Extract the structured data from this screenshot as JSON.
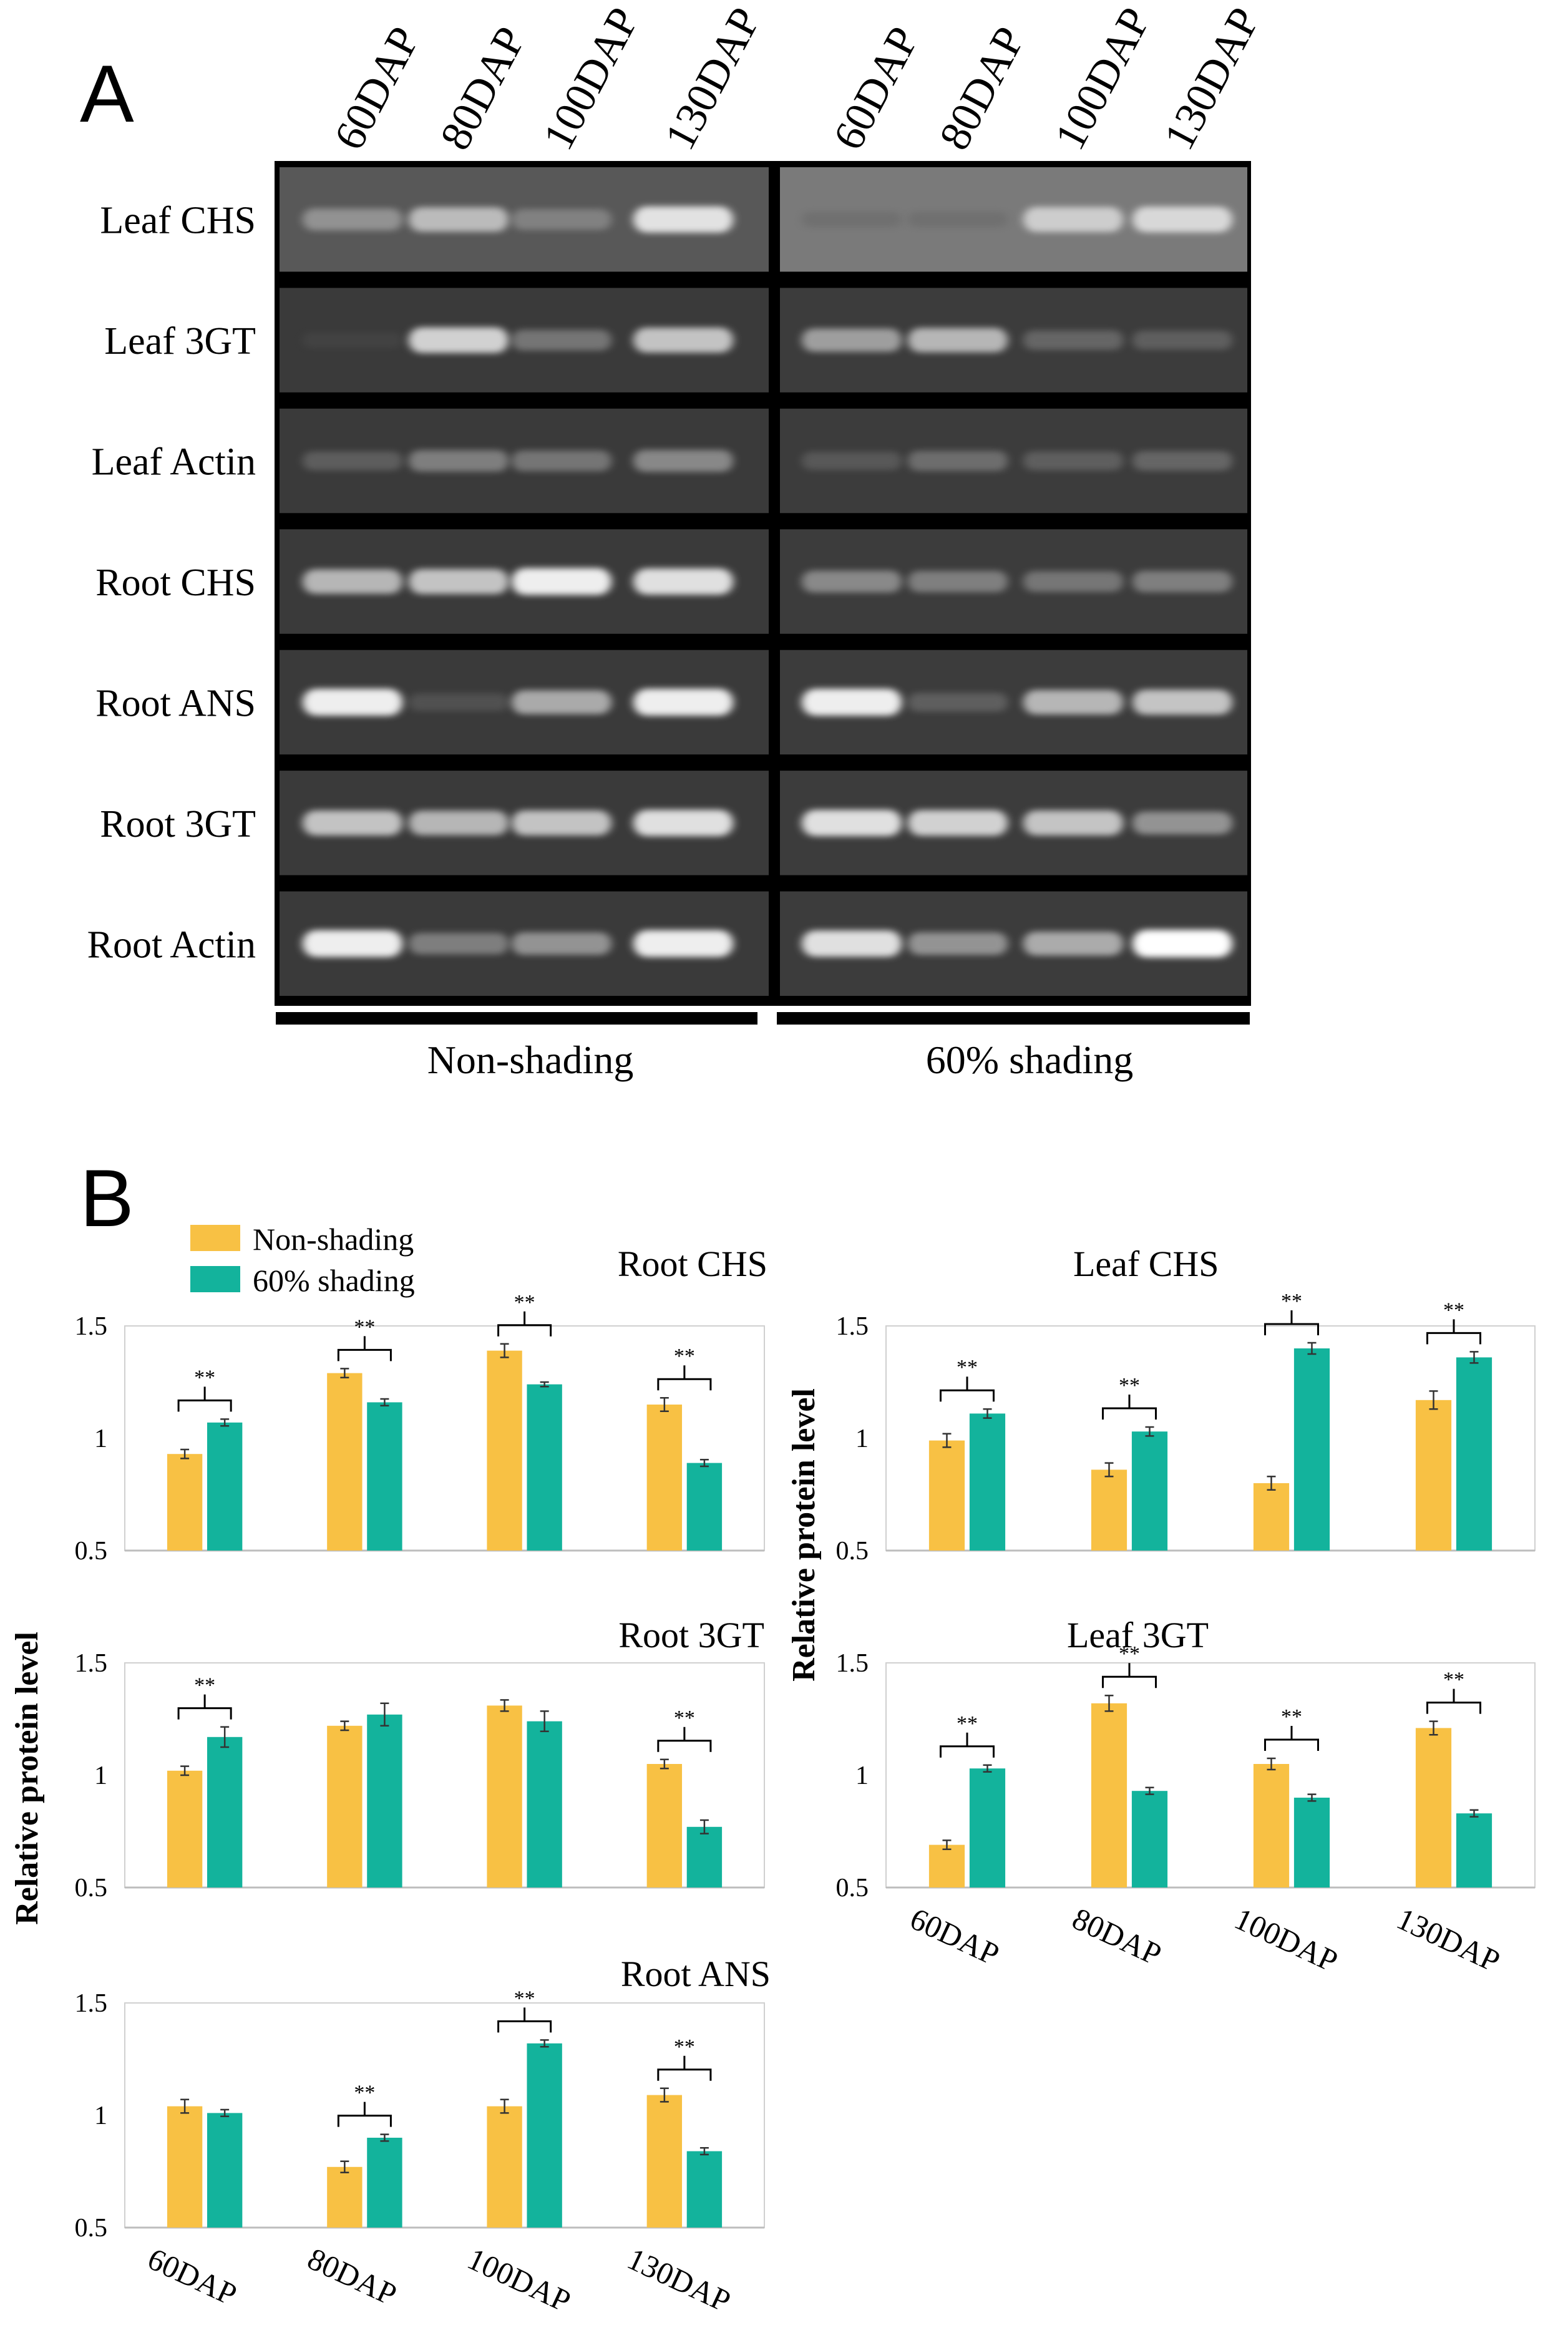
{
  "panel_a": {
    "letter": "A",
    "lanes": [
      "60DAP",
      "80DAP",
      "100DAP",
      "130DAP",
      "60DAP",
      "80DAP",
      "100DAP",
      "130DAP"
    ],
    "rows": [
      {
        "label": "Leaf CHS",
        "intensity": [
          0.55,
          0.75,
          0.45,
          0.9,
          0.05,
          0.05,
          0.8,
          0.85
        ]
      },
      {
        "label": "Leaf 3GT",
        "intensity": [
          0.05,
          0.85,
          0.45,
          0.8,
          0.65,
          0.75,
          0.35,
          0.3
        ]
      },
      {
        "label": "Leaf Actin",
        "intensity": [
          0.3,
          0.5,
          0.45,
          0.55,
          0.25,
          0.4,
          0.3,
          0.35
        ]
      },
      {
        "label": "Root CHS",
        "intensity": [
          0.75,
          0.8,
          0.95,
          0.9,
          0.55,
          0.5,
          0.45,
          0.5
        ]
      },
      {
        "label": "Root ANS",
        "intensity": [
          0.95,
          0.2,
          0.7,
          0.95,
          0.95,
          0.3,
          0.75,
          0.8
        ]
      },
      {
        "label": "Root 3GT",
        "intensity": [
          0.8,
          0.75,
          0.8,
          0.9,
          0.9,
          0.85,
          0.8,
          0.6
        ]
      },
      {
        "label": "Root Actin",
        "intensity": [
          0.95,
          0.5,
          0.6,
          0.95,
          0.9,
          0.6,
          0.7,
          1.0
        ]
      }
    ],
    "groups": [
      "Non-shading",
      "60% shading"
    ]
  },
  "panel_b": {
    "letter": "B",
    "legend": [
      {
        "label": "Non-shading",
        "color": "#F8C144"
      },
      {
        "label": "60% shading",
        "color": "#13B39C"
      }
    ],
    "ylabel": "Relative  protein  level",
    "significance_mark": "**"
  },
  "chart_data": [
    {
      "type": "bar",
      "title": "Root   CHS",
      "categories": [
        "60DAP",
        "80DAP",
        "100DAP",
        "130DAP"
      ],
      "series": [
        {
          "name": "Non-shading",
          "values": [
            0.93,
            1.29,
            1.39,
            1.15
          ],
          "errors": [
            0.02,
            0.02,
            0.03,
            0.03
          ]
        },
        {
          "name": "60% shading",
          "values": [
            1.07,
            1.16,
            1.24,
            0.89
          ],
          "errors": [
            0.015,
            0.015,
            0.01,
            0.015
          ]
        }
      ],
      "significant": [
        true,
        true,
        true,
        true
      ],
      "ylim": [
        0.5,
        1.5
      ],
      "yticks": [
        "0.5",
        "1",
        "1.5"
      ],
      "show_xlabels": false
    },
    {
      "type": "bar",
      "title": "Leaf   CHS",
      "categories": [
        "60DAP",
        "80DAP",
        "100DAP",
        "130DAP"
      ],
      "series": [
        {
          "name": "Non-shading",
          "values": [
            0.99,
            0.86,
            0.8,
            1.17
          ],
          "errors": [
            0.03,
            0.03,
            0.03,
            0.04
          ]
        },
        {
          "name": "60% shading",
          "values": [
            1.11,
            1.03,
            1.4,
            1.36
          ],
          "errors": [
            0.02,
            0.02,
            0.025,
            0.025
          ]
        }
      ],
      "significant": [
        true,
        true,
        true,
        true
      ],
      "ylim": [
        0.5,
        1.5
      ],
      "yticks": [
        "0.5",
        "1",
        "1.5"
      ],
      "show_xlabels": false
    },
    {
      "type": "bar",
      "title": "Root   3GT",
      "categories": [
        "60DAP",
        "80DAP",
        "100DAP",
        "130DAP"
      ],
      "series": [
        {
          "name": "Non-shading",
          "values": [
            1.02,
            1.22,
            1.31,
            1.05
          ],
          "errors": [
            0.02,
            0.02,
            0.025,
            0.02
          ]
        },
        {
          "name": "60% shading",
          "values": [
            1.17,
            1.27,
            1.24,
            0.77
          ],
          "errors": [
            0.045,
            0.05,
            0.045,
            0.03
          ]
        }
      ],
      "significant": [
        true,
        false,
        false,
        true
      ],
      "ylim": [
        0.5,
        1.5
      ],
      "yticks": [
        "0.5",
        "1",
        "1.5"
      ],
      "show_xlabels": false
    },
    {
      "type": "bar",
      "title": "Leaf   3GT",
      "categories": [
        "60DAP",
        "80DAP",
        "100DAP",
        "130DAP"
      ],
      "series": [
        {
          "name": "Non-shading",
          "values": [
            0.69,
            1.32,
            1.05,
            1.21
          ],
          "errors": [
            0.02,
            0.035,
            0.025,
            0.03
          ]
        },
        {
          "name": "60% shading",
          "values": [
            1.03,
            0.93,
            0.9,
            0.83
          ],
          "errors": [
            0.015,
            0.015,
            0.015,
            0.015
          ]
        }
      ],
      "significant": [
        true,
        true,
        true,
        true
      ],
      "ylim": [
        0.5,
        1.5
      ],
      "yticks": [
        "0.5",
        "1",
        "1.5"
      ],
      "show_xlabels": true
    },
    {
      "type": "bar",
      "title": "Root   ANS",
      "categories": [
        "60DAP",
        "80DAP",
        "100DAP",
        "130DAP"
      ],
      "series": [
        {
          "name": "Non-shading",
          "values": [
            1.04,
            0.77,
            1.04,
            1.09
          ],
          "errors": [
            0.03,
            0.025,
            0.03,
            0.03
          ]
        },
        {
          "name": "60% shading",
          "values": [
            1.01,
            0.9,
            1.32,
            0.84
          ],
          "errors": [
            0.015,
            0.015,
            0.015,
            0.015
          ]
        }
      ],
      "significant": [
        false,
        true,
        true,
        true
      ],
      "ylim": [
        0.5,
        1.5
      ],
      "yticks": [
        "0.5",
        "1",
        "1.5"
      ],
      "show_xlabels": true
    }
  ]
}
